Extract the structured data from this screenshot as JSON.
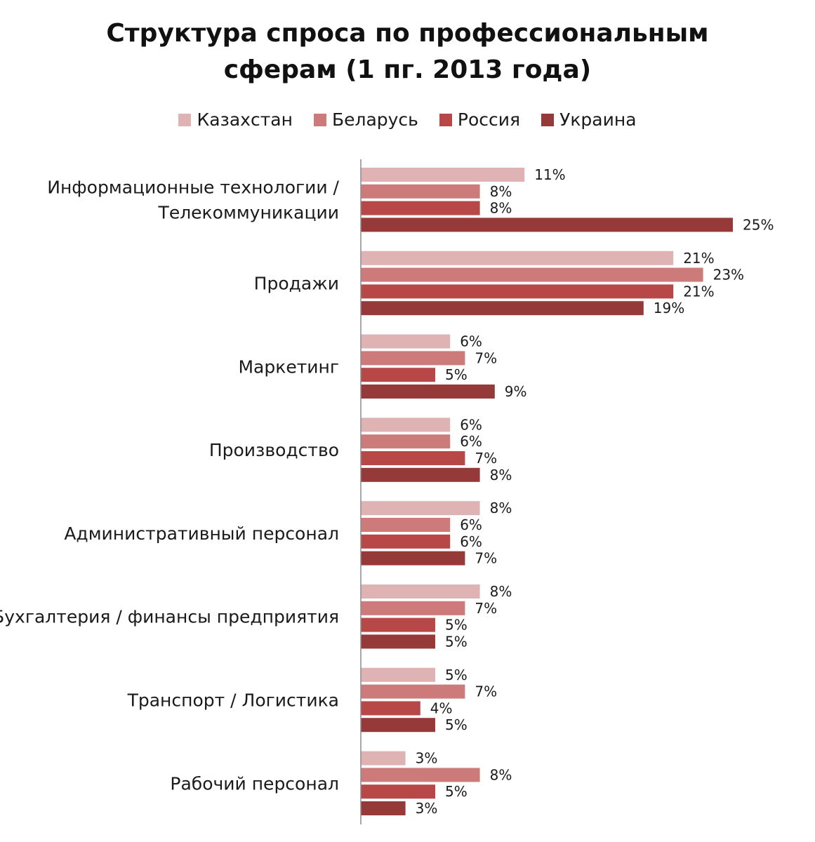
{
  "title_line1": "Структура спроса по профессиональным",
  "title_line2": "сферам (1 пг. 2013 года)",
  "chart_data": {
    "type": "bar",
    "orientation": "horizontal",
    "title": "Структура спроса по профессиональным сферам (1 пг. 2013 года)",
    "categories": [
      "Информационные технологии / Телекоммуникации",
      "Продажи",
      "Маркетинг",
      "Производство",
      "Административный персонал",
      "Бухгалтерия / финансы предприятия",
      "Транспорт / Логистика",
      "Рабочий персонал"
    ],
    "category_lines": [
      [
        "Информационные технологии /",
        "Телекоммуникации"
      ],
      [
        "Продажи"
      ],
      [
        "Маркетинг"
      ],
      [
        "Производство"
      ],
      [
        "Административный персонал"
      ],
      [
        "Бухгалтерия / финансы предприятия"
      ],
      [
        "Транспорт / Логистика"
      ],
      [
        "Рабочий персонал"
      ]
    ],
    "series": [
      {
        "name": "Казахстан",
        "color": "#dfb3b3",
        "values": [
          11,
          21,
          6,
          6,
          8,
          8,
          5,
          3
        ]
      },
      {
        "name": "Беларусь",
        "color": "#cc7a7a",
        "values": [
          8,
          23,
          7,
          6,
          6,
          7,
          7,
          8
        ]
      },
      {
        "name": "Россия",
        "color": "#b84848",
        "values": [
          8,
          21,
          5,
          7,
          6,
          5,
          4,
          5
        ]
      },
      {
        "name": "Украина",
        "color": "#963939",
        "values": [
          25,
          19,
          9,
          8,
          7,
          5,
          5,
          3
        ]
      }
    ],
    "value_suffix": "%",
    "xlim": [
      0,
      25
    ],
    "grid": false,
    "legend_position": "top"
  }
}
